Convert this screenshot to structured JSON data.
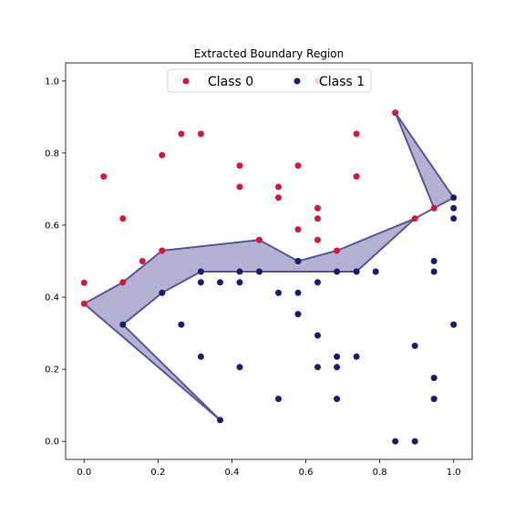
{
  "chart_data": {
    "type": "scatter",
    "title": "Extracted Boundary Region",
    "xlabel": "",
    "ylabel": "",
    "xlim": [
      -0.05,
      1.05
    ],
    "ylim": [
      -0.05,
      1.05
    ],
    "xticks": [
      "0.0",
      "0.2",
      "0.4",
      "0.6",
      "0.8",
      "1.0"
    ],
    "yticks": [
      "0.0",
      "0.2",
      "0.4",
      "0.6",
      "0.8",
      "1.0"
    ],
    "grid": false,
    "legend_position": "top-center",
    "series": [
      {
        "name": "Class 0",
        "color": "#d6163c",
        "points": [
          [
            0.0,
            0.44
          ],
          [
            0.053,
            0.735
          ],
          [
            0.105,
            0.618
          ],
          [
            0.158,
            0.5
          ],
          [
            0.211,
            0.794
          ],
          [
            0.263,
            0.853
          ],
          [
            0.316,
            0.853
          ],
          [
            0.421,
            0.765
          ],
          [
            0.421,
            0.706
          ],
          [
            0.526,
            0.706
          ],
          [
            0.526,
            0.676
          ],
          [
            0.579,
            0.765
          ],
          [
            0.579,
            0.588
          ],
          [
            0.632,
            0.647
          ],
          [
            0.632,
            0.618
          ],
          [
            0.632,
            0.559
          ],
          [
            0.632,
            1.0
          ],
          [
            0.737,
            0.853
          ],
          [
            0.737,
            0.735
          ],
          [
            0.842,
            0.912
          ],
          [
            0.895,
            0.618
          ],
          [
            0.947,
            0.647
          ],
          [
            0.0,
            0.382
          ],
          [
            0.105,
            0.441
          ],
          [
            0.211,
            0.529
          ],
          [
            0.474,
            0.559
          ],
          [
            0.579,
            0.5
          ],
          [
            0.684,
            0.529
          ]
        ]
      },
      {
        "name": "Class 1",
        "color": "#1b1b6b",
        "points": [
          [
            0.105,
            0.324
          ],
          [
            0.211,
            0.412
          ],
          [
            0.263,
            0.324
          ],
          [
            0.316,
            0.471
          ],
          [
            0.316,
            0.441
          ],
          [
            0.316,
            0.235
          ],
          [
            0.368,
            0.441
          ],
          [
            0.368,
            0.059
          ],
          [
            0.421,
            0.471
          ],
          [
            0.421,
            0.441
          ],
          [
            0.421,
            0.206
          ],
          [
            0.474,
            0.471
          ],
          [
            0.526,
            0.412
          ],
          [
            0.526,
            0.118
          ],
          [
            0.579,
            0.412
          ],
          [
            0.579,
            0.353
          ],
          [
            0.579,
            0.5
          ],
          [
            0.632,
            0.441
          ],
          [
            0.632,
            0.294
          ],
          [
            0.632,
            0.206
          ],
          [
            0.684,
            0.471
          ],
          [
            0.684,
            0.235
          ],
          [
            0.684,
            0.206
          ],
          [
            0.684,
            0.118
          ],
          [
            0.737,
            0.471
          ],
          [
            0.737,
            0.235
          ],
          [
            0.789,
            0.471
          ],
          [
            0.842,
            0.0
          ],
          [
            0.895,
            0.265
          ],
          [
            0.895,
            0.0
          ],
          [
            0.947,
            0.5
          ],
          [
            0.947,
            0.471
          ],
          [
            0.947,
            0.176
          ],
          [
            0.947,
            0.118
          ],
          [
            1.0,
            0.676
          ],
          [
            1.0,
            0.647
          ],
          [
            1.0,
            0.618
          ],
          [
            1.0,
            0.324
          ]
        ]
      }
    ],
    "region": {
      "fill": "#6a63a8",
      "stroke": "#5b5598",
      "polygon": [
        [
          0.0,
          0.382
        ],
        [
          0.105,
          0.441
        ],
        [
          0.211,
          0.529
        ],
        [
          0.474,
          0.559
        ],
        [
          0.579,
          0.5
        ],
        [
          0.684,
          0.529
        ],
        [
          0.895,
          0.618
        ],
        [
          0.947,
          0.647
        ],
        [
          0.842,
          0.912
        ],
        [
          1.0,
          0.676
        ],
        [
          0.947,
          0.647
        ],
        [
          0.895,
          0.618
        ],
        [
          0.737,
          0.471
        ],
        [
          0.316,
          0.471
        ],
        [
          0.211,
          0.412
        ],
        [
          0.105,
          0.324
        ],
        [
          0.368,
          0.059
        ],
        [
          0.0,
          0.382
        ]
      ]
    }
  }
}
